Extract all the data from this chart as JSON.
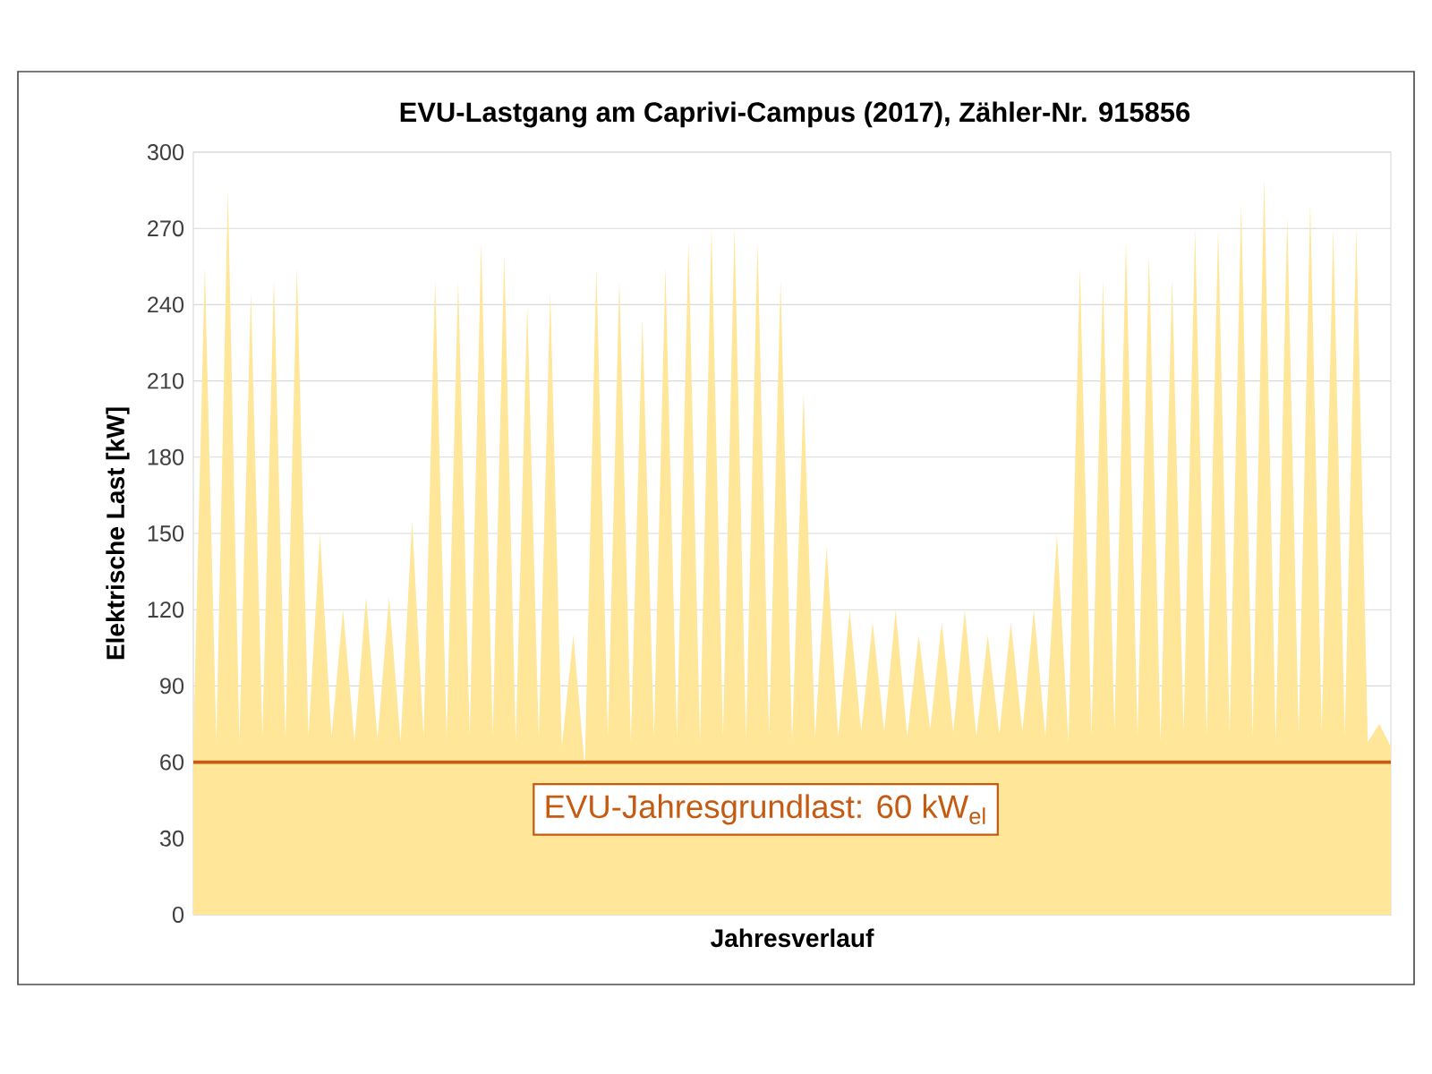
{
  "chart_data": {
    "type": "area",
    "title": "EVU-Lastgang am Caprivi-Campus (2017), Zähler-Nr. 915856",
    "xlabel": "Jahresverlauf",
    "ylabel": "Elektrische Last [kW]",
    "categories": [
      null,
      null,
      null,
      null,
      null,
      null,
      null,
      null,
      null,
      null,
      null,
      null,
      null,
      null,
      null,
      null,
      null,
      null,
      null,
      null,
      null,
      null,
      null,
      null,
      null,
      null,
      null,
      null,
      null,
      null,
      null,
      null,
      null,
      null,
      null,
      null,
      null,
      null,
      null,
      null,
      null,
      null,
      null,
      null,
      null,
      null,
      null,
      null,
      null,
      null,
      null,
      null,
      null,
      null,
      null,
      null,
      null,
      null,
      null,
      null,
      null,
      null,
      null,
      null,
      null,
      null,
      null,
      null,
      null,
      null,
      null,
      null,
      null,
      null,
      null,
      null,
      null,
      null,
      null,
      null,
      null,
      null,
      null,
      null,
      null,
      null,
      null,
      null,
      null,
      null,
      null,
      null,
      null,
      null,
      null,
      null,
      null,
      null,
      null,
      null,
      null,
      null,
      null,
      null,
      null
    ],
    "values": [
      67,
      255,
      68,
      285,
      68,
      245,
      70,
      250,
      69,
      255,
      70,
      150,
      70,
      120,
      68,
      125,
      69,
      125,
      68,
      155,
      70,
      250,
      69,
      250,
      70,
      265,
      70,
      260,
      68,
      240,
      69,
      245,
      66,
      110,
      58,
      255,
      70,
      250,
      68,
      235,
      70,
      255,
      69,
      265,
      68,
      270,
      70,
      270,
      69,
      265,
      70,
      250,
      68,
      205,
      70,
      145,
      70,
      120,
      72,
      115,
      72,
      120,
      70,
      110,
      73,
      115,
      72,
      120,
      70,
      110,
      71,
      115,
      72,
      120,
      70,
      150,
      68,
      255,
      70,
      250,
      72,
      265,
      70,
      260,
      68,
      250,
      72,
      270,
      70,
      270,
      71,
      280,
      70,
      290,
      68,
      275,
      70,
      280,
      72,
      270,
      70,
      270,
      68,
      75,
      66
    ],
    "color": "#ffe699",
    "ylim": [
      0,
      300
    ],
    "yticks": [
      0,
      30,
      60,
      90,
      120,
      150,
      180,
      210,
      240,
      270,
      300
    ],
    "grid": "y",
    "ref_lines": [
      {
        "axis": "y",
        "value": 60,
        "label": "EVU-Jahresgrundlast: 60 kW$_{el}$",
        "color": "#c55a11"
      }
    ]
  }
}
